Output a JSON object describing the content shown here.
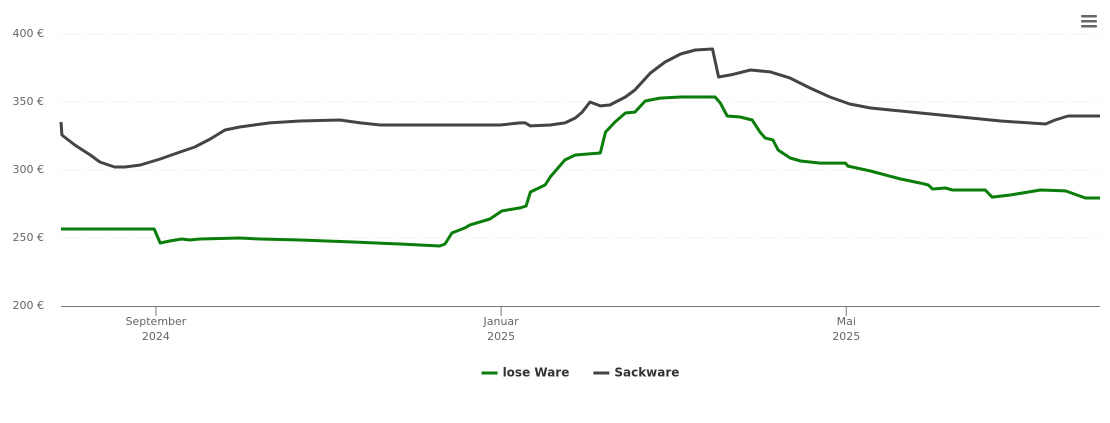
{
  "chart_data": {
    "type": "line",
    "xlim": [
      7.9,
      19.94
    ],
    "xticks": [
      {
        "value": 9,
        "label": "September",
        "year": "2024"
      },
      {
        "value": 13,
        "label": "Januar",
        "year": "2025"
      },
      {
        "value": 17,
        "label": "Mai",
        "year": "2025"
      }
    ],
    "ylim": [
      200,
      400
    ],
    "yticks": [
      {
        "value": 200,
        "label": "200 €"
      },
      {
        "value": 250,
        "label": "250 €"
      },
      {
        "value": 300,
        "label": "300 €"
      },
      {
        "value": 350,
        "label": "350 €"
      },
      {
        "value": 400,
        "label": "400 €"
      }
    ],
    "grid": true,
    "legend": "bottom",
    "series": [
      {
        "name": "lose Ware",
        "color": "#0a7d0a",
        "x": [
          7.9,
          8.98,
          9.05,
          9.16,
          9.3,
          9.39,
          9.51,
          9.97,
          10.21,
          10.67,
          11.25,
          11.83,
          12.29,
          12.35,
          12.43,
          12.58,
          12.64,
          12.87,
          13.01,
          13.22,
          13.29,
          13.34,
          13.51,
          13.57,
          13.74,
          13.86,
          14.15,
          14.21,
          14.32,
          14.44,
          14.55,
          14.67,
          14.84,
          15.08,
          15.48,
          15.54,
          15.62,
          15.77,
          15.91,
          16.0,
          16.06,
          16.15,
          16.21,
          16.35,
          16.47,
          16.7,
          16.99,
          17.02,
          17.28,
          17.63,
          17.86,
          17.95,
          18.0,
          18.15,
          18.23,
          18.61,
          18.69,
          18.9,
          19.25,
          19.54,
          19.77,
          19.94
        ],
        "values": [
          256.6,
          256.6,
          246.3,
          247.8,
          249.3,
          248.5,
          249.3,
          250.0,
          249.3,
          248.5,
          247.1,
          245.6,
          244.1,
          245.6,
          253.7,
          257.4,
          259.6,
          264.0,
          269.9,
          272.1,
          273.5,
          283.8,
          289.0,
          294.9,
          307.4,
          311.0,
          312.5,
          327.9,
          335.3,
          341.9,
          342.6,
          350.7,
          352.9,
          353.7,
          353.7,
          349.3,
          339.7,
          339.0,
          336.8,
          327.9,
          323.5,
          322.1,
          314.7,
          308.8,
          306.6,
          305.1,
          305.1,
          302.9,
          299.3,
          293.4,
          290.4,
          289.0,
          286.0,
          286.8,
          285.3,
          285.3,
          280.1,
          281.6,
          285.3,
          284.6,
          279.4,
          279.4
        ]
      },
      {
        "name": "Sackware",
        "color": "#444444",
        "x": [
          7.9,
          7.91,
          8.06,
          8.24,
          8.35,
          8.52,
          8.64,
          8.82,
          9.05,
          9.28,
          9.45,
          9.63,
          9.8,
          9.97,
          10.32,
          10.67,
          11.13,
          11.37,
          11.6,
          12.99,
          13.22,
          13.28,
          13.34,
          13.57,
          13.74,
          13.86,
          13.94,
          14.03,
          14.15,
          14.26,
          14.44,
          14.55,
          14.73,
          14.9,
          15.08,
          15.25,
          15.45,
          15.52,
          15.66,
          15.89,
          16.12,
          16.35,
          16.58,
          16.81,
          17.04,
          17.28,
          17.63,
          18.21,
          18.79,
          19.31,
          19.42,
          19.57,
          19.94
        ],
        "values": [
          335.3,
          325.7,
          318.4,
          311.0,
          305.9,
          302.2,
          302.2,
          303.7,
          308.1,
          313.2,
          316.9,
          322.8,
          329.4,
          331.6,
          334.6,
          336.0,
          336.8,
          334.6,
          333.1,
          333.1,
          334.6,
          334.6,
          332.4,
          333.1,
          334.6,
          338.2,
          342.6,
          350.0,
          347.1,
          347.8,
          353.7,
          358.8,
          371.3,
          379.4,
          385.3,
          388.2,
          389.0,
          368.4,
          369.9,
          373.5,
          372.1,
          367.6,
          360.3,
          353.7,
          348.5,
          345.6,
          343.4,
          339.7,
          336.0,
          333.8,
          336.8,
          339.7,
          339.7
        ]
      }
    ]
  }
}
